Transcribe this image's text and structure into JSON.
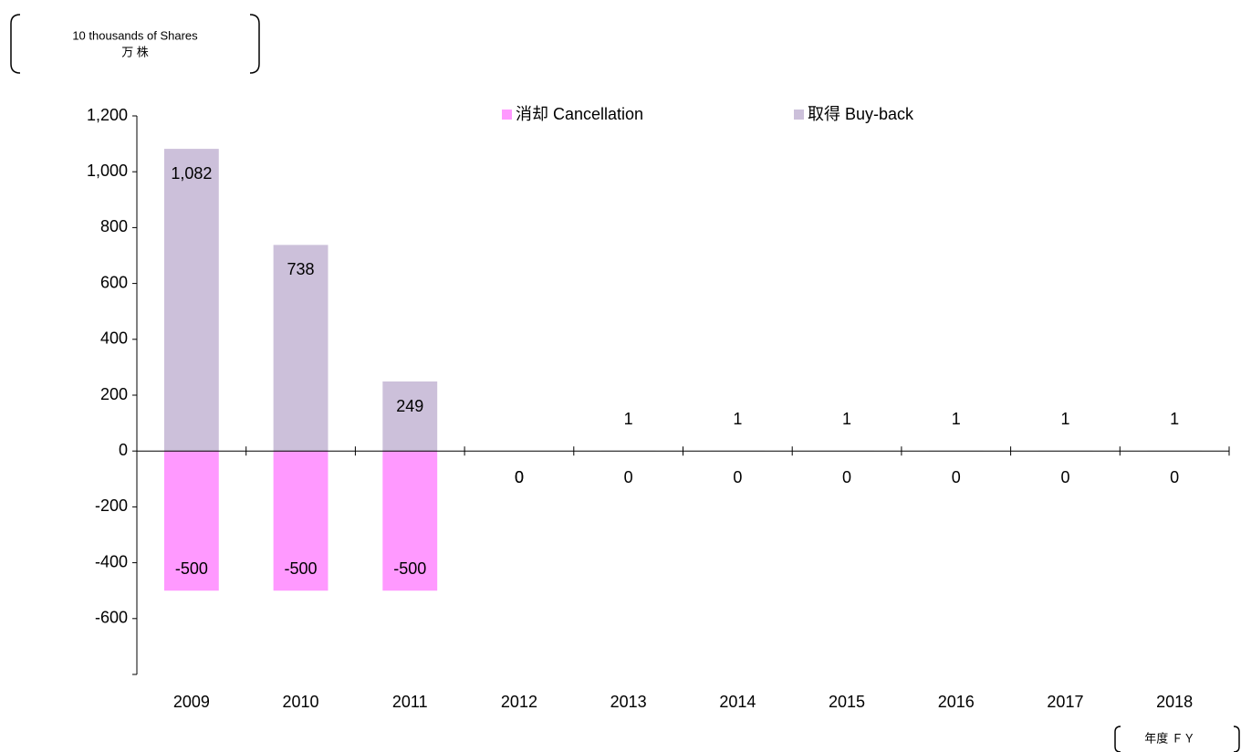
{
  "chart_data": {
    "type": "bar",
    "unit_label": "10 thousands of Shares",
    "unit_label_ja": "万 株",
    "x_axis_label": "年度 ＦＹ",
    "categories": [
      "2009",
      "2010",
      "2011",
      "2012",
      "2013",
      "2014",
      "2015",
      "2016",
      "2017",
      "2018"
    ],
    "series": [
      {
        "name": "消却 Cancellation",
        "color": "#ff99ff",
        "values": [
          -500,
          -500,
          -500,
          0,
          0,
          0,
          0,
          0,
          0,
          0
        ]
      },
      {
        "name": "取得 Buy-back",
        "color": "#ccc0da",
        "values": [
          1082,
          738,
          249,
          0,
          1,
          1,
          1,
          1,
          1,
          1
        ],
        "value_labels": [
          "1,082",
          "738",
          "249",
          "0",
          "1",
          "1",
          "1",
          "1",
          "1",
          "1"
        ]
      }
    ],
    "ylim": [
      -800,
      1200
    ],
    "yticks": [
      {
        "value": 1200,
        "label": "1,200"
      },
      {
        "value": 1000,
        "label": "1,000"
      },
      800,
      600,
      400,
      200,
      0,
      -200,
      -400,
      -600
    ],
    "legend": "top"
  }
}
